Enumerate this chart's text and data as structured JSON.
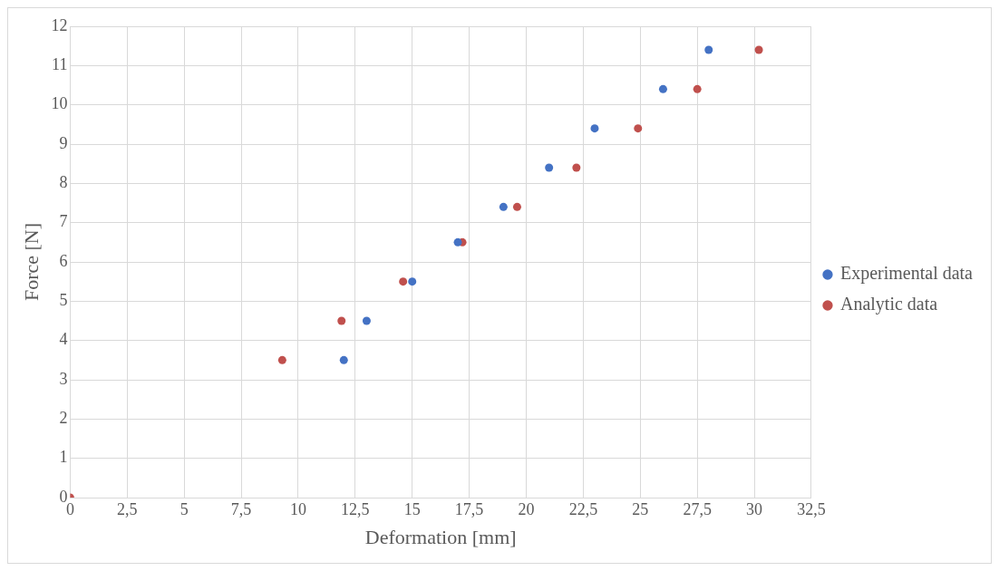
{
  "chart_data": {
    "type": "scatter",
    "xlabel": "Deformation [mm]",
    "ylabel": "Force [N]",
    "xlim": [
      0,
      32.5
    ],
    "xticks": [
      0,
      {
        "value": 2.5,
        "label": "2,5"
      },
      5,
      {
        "value": 7.5,
        "label": "7,5"
      },
      10,
      {
        "value": 12.5,
        "label": "12,5"
      },
      15,
      {
        "value": 17.5,
        "label": "17,5"
      },
      20,
      {
        "value": 22.5,
        "label": "22,5"
      },
      25,
      {
        "value": 27.5,
        "label": "27,5"
      },
      30,
      {
        "value": 32.5,
        "label": "32,5"
      }
    ],
    "ylim": [
      0,
      12
    ],
    "yticks": [
      0,
      1,
      2,
      3,
      4,
      5,
      6,
      7,
      8,
      9,
      10,
      11,
      12
    ],
    "grid": true,
    "legend": "right",
    "marker": "circle",
    "series": [
      {
        "name": "Experimental data",
        "color": "#4472c4",
        "x": [
          12,
          13,
          15,
          17,
          19,
          21,
          23,
          26,
          28
        ],
        "values": [
          3.5,
          4.5,
          5.5,
          6.5,
          7.4,
          8.4,
          9.4,
          10.4,
          11.4
        ]
      },
      {
        "name": "Analytic data",
        "color": "#c0504d",
        "x": [
          0,
          9.3,
          11.9,
          14.6,
          17.2,
          19.6,
          22.2,
          24.9,
          27.5,
          30.2
        ],
        "values": [
          0,
          3.5,
          4.5,
          5.5,
          6.5,
          7.4,
          8.4,
          9.4,
          10.4,
          11.4
        ]
      }
    ]
  }
}
